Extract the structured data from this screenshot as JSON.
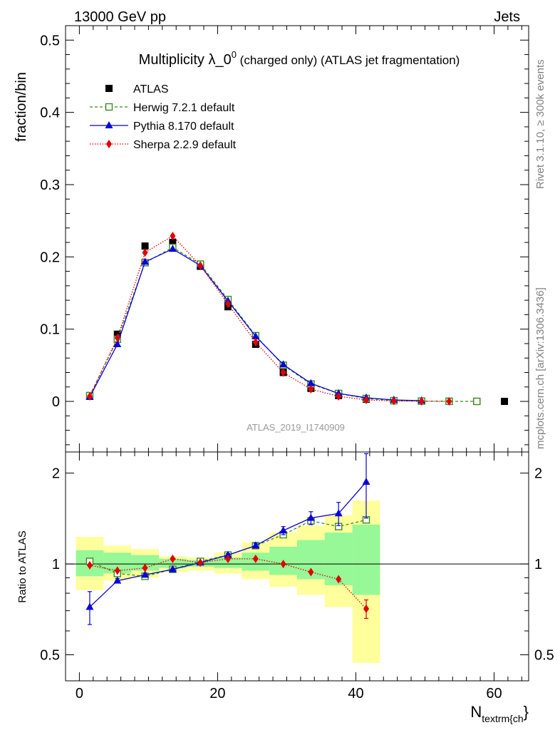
{
  "header": {
    "left": "13000 GeV pp",
    "right": "Jets",
    "side_top": "Rivet 3.1.10, ≥ 300k events",
    "side_bottom": "mcplots.cern.ch [arXiv:1306.3436]",
    "watermark": "ATLAS_2019_I1740909"
  },
  "chart_data": [
    {
      "type": "scatter",
      "title_main": "Multiplicity λ_0",
      "title_sup": "0",
      "title_rest": " (charged only) (ATLAS jet fragmentation)",
      "ylabel": "fraction/bin",
      "xlim": [
        -2,
        65
      ],
      "ylim": [
        -0.07,
        0.52
      ],
      "yticks": [
        0,
        0.1,
        0.2,
        0.3,
        0.4,
        0.5
      ],
      "ytick_labels": [
        "0",
        "0.1",
        "0.2",
        "0.3",
        "0.4",
        "0.5"
      ],
      "legend": "top-left",
      "series": [
        {
          "name": "ATLAS",
          "color": "#000000",
          "marker": "square-filled",
          "x": [
            1.5,
            5.5,
            9.5,
            13.5,
            17.5,
            21.5,
            25.5,
            29.5,
            33.5,
            37.5,
            41.5,
            45.5,
            49.5,
            53.5,
            57.5,
            61.5
          ],
          "y": [
            0.008,
            0.093,
            0.215,
            0.22,
            0.187,
            0.131,
            0.079,
            0.04,
            0.018,
            0.008,
            0.003,
            0.001,
            0.0005,
            0.0002,
            0.0001,
            0.0
          ]
        },
        {
          "name": "Herwig 7.2.1 default",
          "color": "#3a8c1e",
          "marker": "square-open",
          "line": "dashed",
          "x": [
            1.5,
            5.5,
            9.5,
            13.5,
            17.5,
            21.5,
            25.5,
            29.5,
            33.5,
            37.5,
            41.5,
            45.5,
            49.5,
            53.5,
            57.5
          ],
          "y": [
            0.008,
            0.086,
            0.192,
            0.213,
            0.19,
            0.141,
            0.091,
            0.05,
            0.024,
            0.011,
            0.004,
            0.001,
            0.0004,
            0.0001,
            0.0
          ]
        },
        {
          "name": "Pythia 8.170 default",
          "color": "#0a00d8",
          "marker": "triangle",
          "line": "solid",
          "x": [
            1.5,
            5.5,
            9.5,
            13.5,
            17.5,
            21.5,
            25.5,
            29.5,
            33.5,
            37.5,
            41.5,
            45.5,
            49.5
          ],
          "y": [
            0.006,
            0.079,
            0.193,
            0.211,
            0.188,
            0.139,
            0.09,
            0.051,
            0.025,
            0.011,
            0.005,
            0.002,
            0.001
          ]
        },
        {
          "name": "Sherpa 2.2.9 default",
          "color": "#e00000",
          "marker": "diamond",
          "line": "dotted",
          "x": [
            1.5,
            5.5,
            9.5,
            13.5,
            17.5,
            21.5,
            25.5,
            29.5,
            33.5,
            37.5,
            41.5,
            45.5,
            49.5,
            53.5
          ],
          "y": [
            0.007,
            0.088,
            0.206,
            0.229,
            0.188,
            0.135,
            0.082,
            0.04,
            0.017,
            0.007,
            0.002,
            0.0005,
            0.0002,
            0.0001
          ]
        }
      ]
    },
    {
      "type": "scatter",
      "ylabel": "Ratio to ATLAS",
      "xlabel_main": "N",
      "xlabel_sub": "textrm{ch",
      "xlabel_tail": "}",
      "xlim": [
        -2,
        65
      ],
      "xticks": [
        0,
        20,
        40,
        60
      ],
      "xtick_labels": [
        "0",
        "20",
        "40",
        "60"
      ],
      "ylim": [
        0.41,
        2.35
      ],
      "ylog": true,
      "yticks": [
        0.5,
        1,
        2
      ],
      "ytick_labels": [
        "0.5",
        "1",
        "2"
      ],
      "bands": {
        "edges": [
          -0.5,
          3.5,
          7.5,
          11.5,
          15.5,
          19.5,
          23.5,
          27.5,
          31.5,
          35.5,
          39.5,
          43.5
        ],
        "yellow_lo": [
          0.82,
          0.88,
          0.9,
          0.94,
          0.95,
          0.93,
          0.89,
          0.84,
          0.79,
          0.72,
          0.47
        ],
        "yellow_hi": [
          1.23,
          1.15,
          1.12,
          1.06,
          1.05,
          1.09,
          1.18,
          1.27,
          1.34,
          1.45,
          1.62
        ],
        "green_lo": [
          0.91,
          0.93,
          0.95,
          0.97,
          0.98,
          0.97,
          0.95,
          0.92,
          0.89,
          0.85,
          0.79
        ],
        "green_hi": [
          1.11,
          1.09,
          1.07,
          1.04,
          1.03,
          1.05,
          1.09,
          1.14,
          1.2,
          1.27,
          1.35
        ]
      },
      "series": [
        {
          "name": "Herwig 7.2.1 default",
          "color": "#3a8c1e",
          "marker": "square-open",
          "line": "dashed",
          "x": [
            1.5,
            5.5,
            9.5,
            13.5,
            17.5,
            21.5,
            25.5,
            29.5,
            33.5,
            37.5,
            41.5
          ],
          "y": [
            1.02,
            0.93,
            0.91,
            0.96,
            1.02,
            1.07,
            1.15,
            1.25,
            1.39,
            1.33,
            1.4
          ]
        },
        {
          "name": "Pythia 8.170 default",
          "color": "#0a00d8",
          "marker": "triangle",
          "line": "solid",
          "x": [
            1.5,
            5.5,
            9.5,
            13.5,
            17.5,
            21.5,
            25.5,
            29.5,
            33.5,
            37.5,
            41.5
          ],
          "y": [
            0.72,
            0.88,
            0.92,
            0.96,
            1.01,
            1.07,
            1.15,
            1.29,
            1.42,
            1.47,
            1.87
          ],
          "err": [
            0.09,
            0.015,
            0.012,
            0.01,
            0.01,
            0.012,
            0.02,
            0.04,
            0.07,
            0.13,
            0.45
          ]
        },
        {
          "name": "Sherpa 2.2.9 default",
          "color": "#e00000",
          "marker": "diamond",
          "line": "dotted",
          "x": [
            1.5,
            5.5,
            9.5,
            13.5,
            17.5,
            21.5,
            25.5,
            29.5,
            33.5,
            37.5,
            41.5
          ],
          "y": [
            0.99,
            0.95,
            0.97,
            1.04,
            1.01,
            1.04,
            1.04,
            1.0,
            0.94,
            0.89,
            0.71
          ],
          "err": [
            0.0,
            0.0,
            0.0,
            0.0,
            0.0,
            0.0,
            0.0,
            0.0,
            0.0,
            0.0,
            0.05
          ]
        }
      ]
    }
  ]
}
